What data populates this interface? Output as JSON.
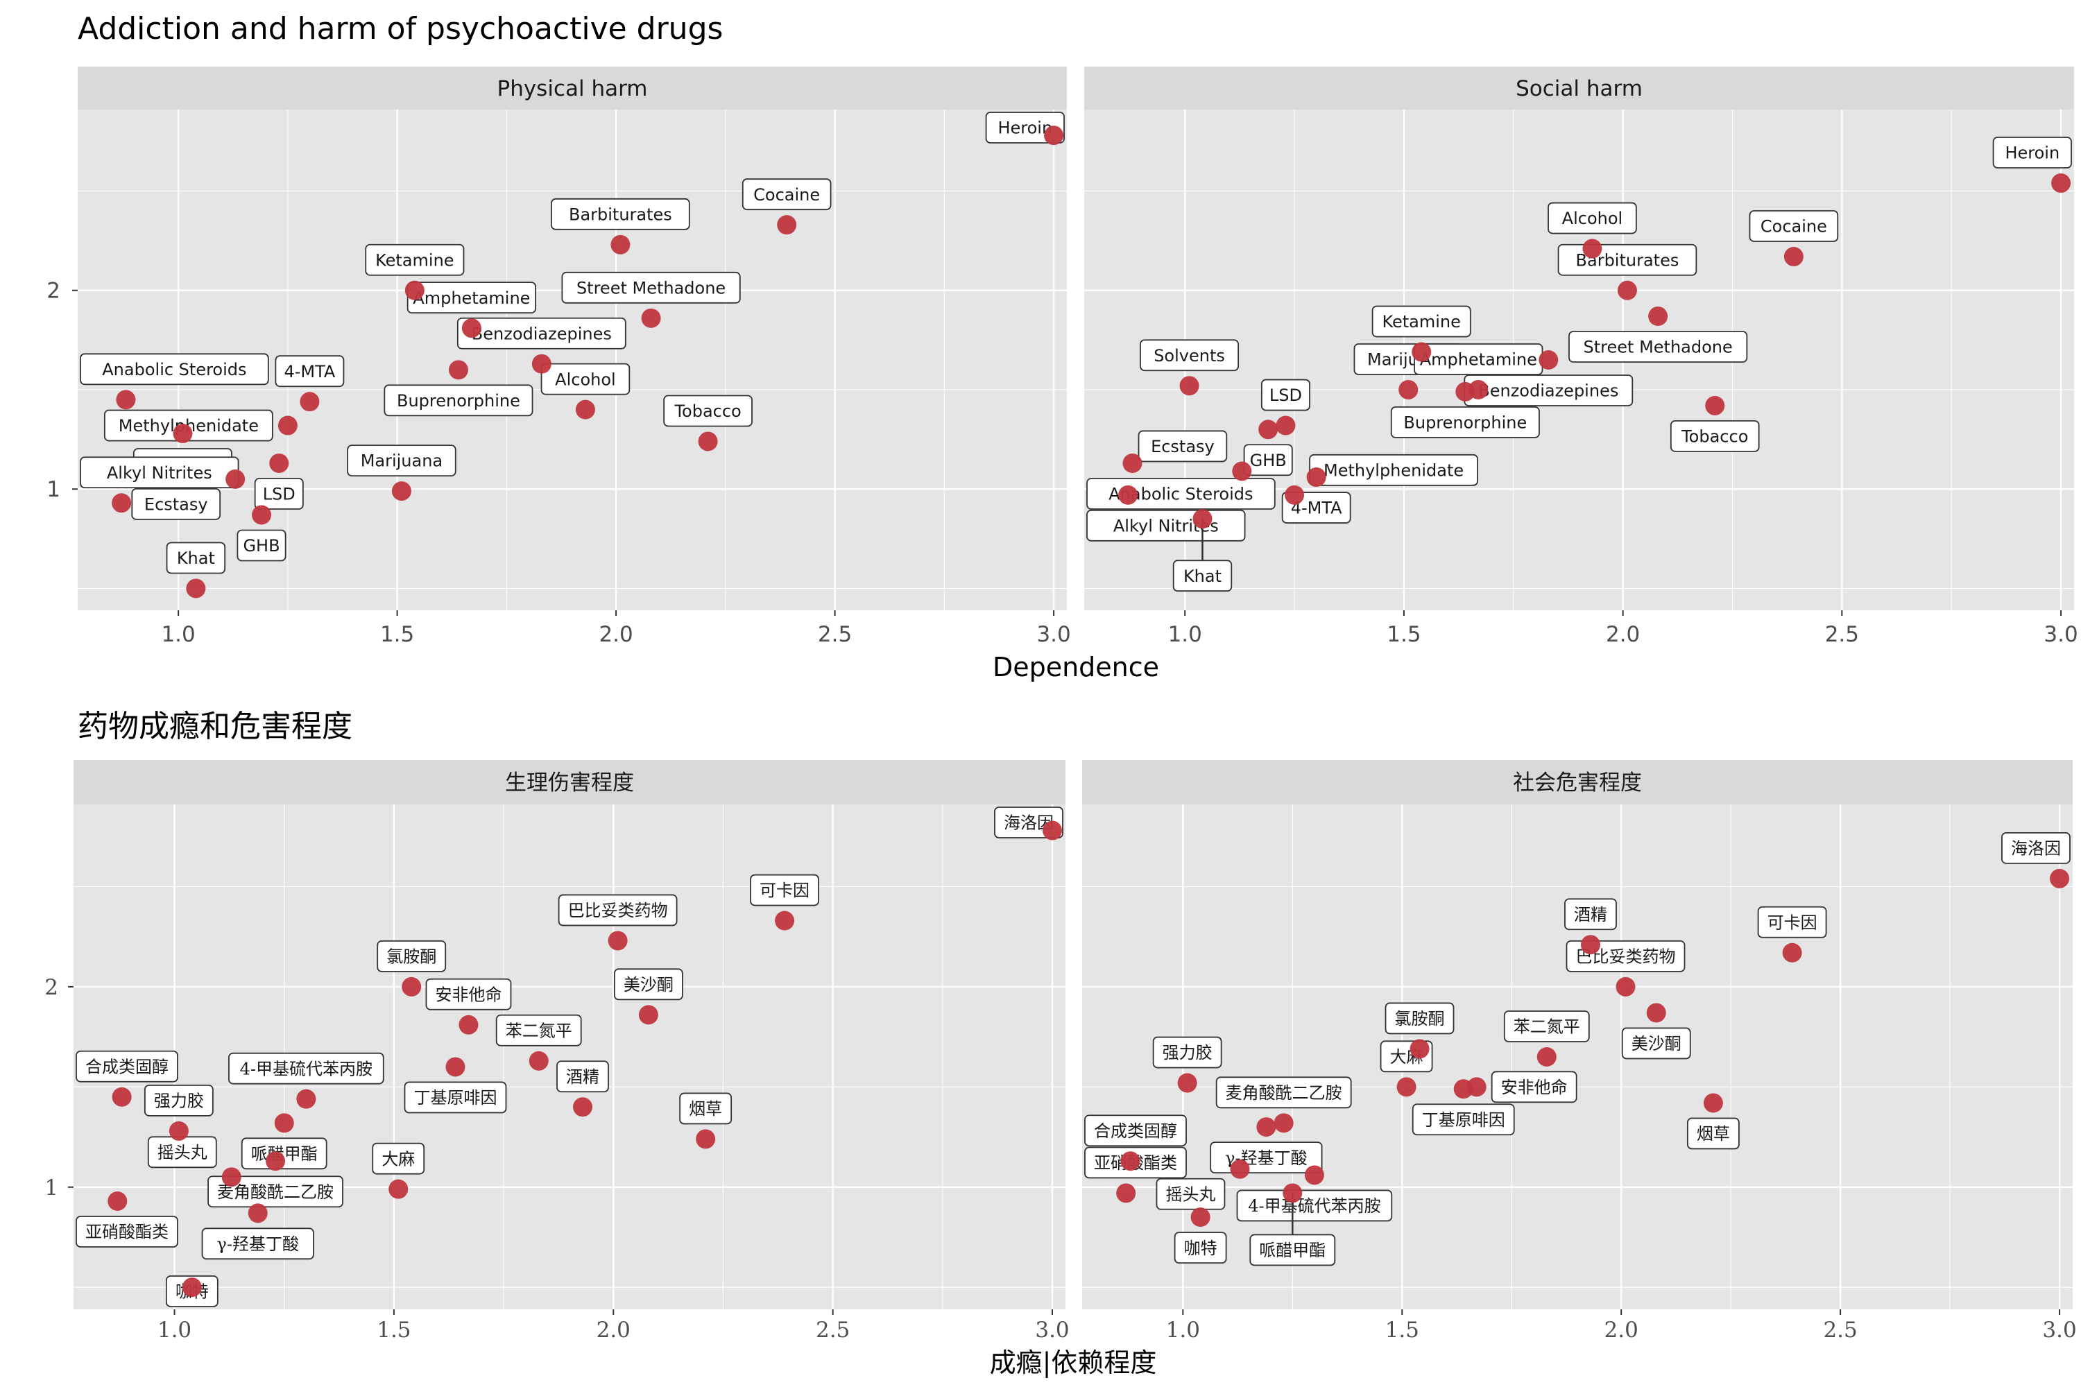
{
  "colors": {
    "point": "#c0363f",
    "panel": "#e5e5e5",
    "strip": "#d9d9d9",
    "grid": "#ffffff",
    "label_border": "#333333"
  },
  "chart_data": [
    {
      "type": "scatter",
      "title": "Addiction and harm of psychoactive drugs",
      "xlabel": "Dependence",
      "ylabel": "",
      "xlim": [
        0.77,
        3.03
      ],
      "ylim": [
        0.39,
        2.91
      ],
      "xticks": [
        "1.0",
        "1.5",
        "2.0",
        "2.5",
        "3.0"
      ],
      "yticks": [
        "1",
        "2"
      ],
      "facets": [
        {
          "name": "Physical harm",
          "points": [
            {
              "label": "Heroin",
              "x": 3.0,
              "y": 2.78
            },
            {
              "label": "Cocaine",
              "x": 2.39,
              "y": 2.33
            },
            {
              "label": "Barbiturates",
              "x": 2.01,
              "y": 2.23
            },
            {
              "label": "Street Methadone",
              "x": 2.08,
              "y": 1.86
            },
            {
              "label": "Ketamine",
              "x": 1.54,
              "y": 2.0
            },
            {
              "label": "Amphetamine",
              "x": 1.67,
              "y": 1.81
            },
            {
              "label": "Benzodiazepines",
              "x": 1.83,
              "y": 1.63
            },
            {
              "label": "Buprenorphine",
              "x": 1.64,
              "y": 1.6
            },
            {
              "label": "Alcohol",
              "x": 1.93,
              "y": 1.4
            },
            {
              "label": "Tobacco",
              "x": 2.21,
              "y": 1.24
            },
            {
              "label": "Marijuana",
              "x": 1.51,
              "y": 0.99
            },
            {
              "label": "4-MTA",
              "x": 1.3,
              "y": 1.44
            },
            {
              "label": "Methylphenidate",
              "x": 1.25,
              "y": 1.32
            },
            {
              "label": "Anabolic Steroids",
              "x": 0.88,
              "y": 1.45
            },
            {
              "label": "LSD",
              "x": 1.23,
              "y": 1.13
            },
            {
              "label": "Solvents",
              "x": 1.01,
              "y": 1.28
            },
            {
              "label": "Ecstasy",
              "x": 1.13,
              "y": 1.05
            },
            {
              "label": "GHB",
              "x": 1.19,
              "y": 0.87
            },
            {
              "label": "Alkyl Nitrites",
              "x": 0.87,
              "y": 0.93
            },
            {
              "label": "Khat",
              "x": 1.04,
              "y": 0.5
            }
          ]
        },
        {
          "name": "Social harm",
          "points": [
            {
              "label": "Heroin",
              "x": 3.0,
              "y": 2.54
            },
            {
              "label": "Cocaine",
              "x": 2.39,
              "y": 2.17
            },
            {
              "label": "Alcohol",
              "x": 1.93,
              "y": 2.21
            },
            {
              "label": "Barbiturates",
              "x": 2.01,
              "y": 2.0
            },
            {
              "label": "Street Methadone",
              "x": 2.08,
              "y": 1.87
            },
            {
              "label": "Ketamine",
              "x": 1.54,
              "y": 1.69
            },
            {
              "label": "Benzodiazepines",
              "x": 1.83,
              "y": 1.65
            },
            {
              "label": "Marijuana",
              "x": 1.51,
              "y": 1.5
            },
            {
              "label": "Buprenorphine",
              "x": 1.64,
              "y": 1.49
            },
            {
              "label": "Amphetamine",
              "x": 1.67,
              "y": 1.5
            },
            {
              "label": "Tobacco",
              "x": 2.21,
              "y": 1.42
            },
            {
              "label": "Solvents",
              "x": 1.01,
              "y": 1.52
            },
            {
              "label": "LSD",
              "x": 1.23,
              "y": 1.32
            },
            {
              "label": "GHB",
              "x": 1.19,
              "y": 1.3
            },
            {
              "label": "Anabolic Steroids",
              "x": 0.88,
              "y": 1.13
            },
            {
              "label": "4-MTA",
              "x": 1.3,
              "y": 1.06
            },
            {
              "label": "Ecstasy",
              "x": 1.13,
              "y": 1.09
            },
            {
              "label": "Methylphenidate",
              "x": 1.25,
              "y": 0.97
            },
            {
              "label": "Alkyl Nitrites",
              "x": 0.87,
              "y": 0.97
            },
            {
              "label": "Khat",
              "x": 1.04,
              "y": 0.85
            }
          ]
        }
      ]
    },
    {
      "type": "scatter",
      "title": "药物成瘾和危害程度",
      "xlabel": "成瘾|依赖程度",
      "ylabel": "",
      "xlim": [
        0.77,
        3.03
      ],
      "ylim": [
        0.39,
        2.91
      ],
      "xticks": [
        "1.0",
        "1.5",
        "2.0",
        "2.5",
        "3.0"
      ],
      "yticks": [
        "1",
        "2"
      ],
      "facets": [
        {
          "name": "生理伤害程度",
          "points": [
            {
              "label": "海洛因",
              "x": 3.0,
              "y": 2.78
            },
            {
              "label": "可卡因",
              "x": 2.39,
              "y": 2.33
            },
            {
              "label": "巴比妥类药物",
              "x": 2.01,
              "y": 2.23
            },
            {
              "label": "美沙酮",
              "x": 2.08,
              "y": 1.86
            },
            {
              "label": "氯胺酮",
              "x": 1.54,
              "y": 2.0
            },
            {
              "label": "安非他命",
              "x": 1.67,
              "y": 1.81
            },
            {
              "label": "苯二氮平",
              "x": 1.83,
              "y": 1.63
            },
            {
              "label": "丁基原啡因",
              "x": 1.64,
              "y": 1.6
            },
            {
              "label": "酒精",
              "x": 1.93,
              "y": 1.4
            },
            {
              "label": "烟草",
              "x": 2.21,
              "y": 1.24
            },
            {
              "label": "大麻",
              "x": 1.51,
              "y": 0.99
            },
            {
              "label": "4-甲基硫代苯丙胺",
              "x": 1.3,
              "y": 1.44
            },
            {
              "label": "哌醋甲酯",
              "x": 1.25,
              "y": 1.32
            },
            {
              "label": "合成类固醇",
              "x": 0.88,
              "y": 1.45
            },
            {
              "label": "麦角酸酰二乙胺",
              "x": 1.23,
              "y": 1.13
            },
            {
              "label": "强力胶",
              "x": 1.01,
              "y": 1.28
            },
            {
              "label": "摇头丸",
              "x": 1.13,
              "y": 1.05
            },
            {
              "label": "γ-羟基丁酸",
              "x": 1.19,
              "y": 0.87
            },
            {
              "label": "亚硝酸酯类",
              "x": 0.87,
              "y": 0.93
            },
            {
              "label": "咖特",
              "x": 1.04,
              "y": 0.5
            }
          ]
        },
        {
          "name": "社会危害程度",
          "points": [
            {
              "label": "海洛因",
              "x": 3.0,
              "y": 2.54
            },
            {
              "label": "可卡因",
              "x": 2.39,
              "y": 2.17
            },
            {
              "label": "酒精",
              "x": 1.93,
              "y": 2.21
            },
            {
              "label": "巴比妥类药物",
              "x": 2.01,
              "y": 2.0
            },
            {
              "label": "美沙酮",
              "x": 2.08,
              "y": 1.87
            },
            {
              "label": "氯胺酮",
              "x": 1.54,
              "y": 1.69
            },
            {
              "label": "苯二氮平",
              "x": 1.83,
              "y": 1.65
            },
            {
              "label": "大麻",
              "x": 1.51,
              "y": 1.5
            },
            {
              "label": "丁基原啡因",
              "x": 1.64,
              "y": 1.49
            },
            {
              "label": "安非他命",
              "x": 1.67,
              "y": 1.5
            },
            {
              "label": "烟草",
              "x": 2.21,
              "y": 1.42
            },
            {
              "label": "强力胶",
              "x": 1.01,
              "y": 1.52
            },
            {
              "label": "麦角酸酰二乙胺",
              "x": 1.23,
              "y": 1.32
            },
            {
              "label": "γ-羟基丁酸",
              "x": 1.19,
              "y": 1.3
            },
            {
              "label": "合成类固醇",
              "x": 0.88,
              "y": 1.13
            },
            {
              "label": "4-甲基硫代苯丙胺",
              "x": 1.3,
              "y": 1.06
            },
            {
              "label": "摇头丸",
              "x": 1.13,
              "y": 1.09
            },
            {
              "label": "哌醋甲酯",
              "x": 1.25,
              "y": 0.97
            },
            {
              "label": "亚硝酸酯类",
              "x": 0.87,
              "y": 0.97
            },
            {
              "label": "咖特",
              "x": 1.04,
              "y": 0.85
            }
          ]
        }
      ]
    }
  ]
}
